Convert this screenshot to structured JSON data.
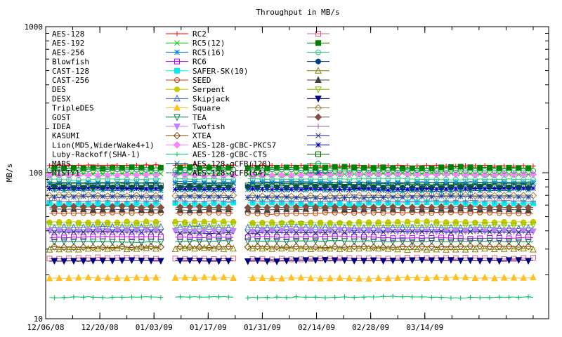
{
  "chart_data": {
    "type": "line",
    "title": "Throughput in MB/s",
    "ylabel": "MB/s",
    "xlabel": "",
    "y_scale": "log",
    "ylim": [
      10,
      1000
    ],
    "y_ticks": [
      {
        "value": 10,
        "label": "10"
      },
      {
        "value": 100,
        "label": "100"
      },
      {
        "value": 1000,
        "label": "1000"
      }
    ],
    "xlim": [
      "2008-12-06",
      "2009-04-15"
    ],
    "x_ticks": [
      {
        "value": "2008-12-06",
        "label": "12/06/08"
      },
      {
        "value": "2008-12-20",
        "label": "12/20/08"
      },
      {
        "value": "2009-01-03",
        "label": "01/03/09"
      },
      {
        "value": "2009-01-17",
        "label": "01/17/09"
      },
      {
        "value": "2009-01-31",
        "label": "01/31/09"
      },
      {
        "value": "2009-02-14",
        "label": "02/14/09"
      },
      {
        "value": "2009-02-28",
        "label": "02/28/09"
      },
      {
        "value": "2009-03-14",
        "label": "03/14/09"
      }
    ],
    "x_start": "2008-12-07",
    "x_end": "2009-04-12",
    "gaps": [
      [
        "2009-01-06",
        "2009-01-08"
      ],
      [
        "2009-01-24",
        "2009-01-26"
      ]
    ],
    "grid": false,
    "legend_placement": "top-left",
    "series": [
      {
        "name": "AES-128",
        "color": "#ff0000",
        "marker": "plus",
        "value": 112
      },
      {
        "name": "AES-192",
        "color": "#00c000",
        "marker": "x",
        "value": 98
      },
      {
        "name": "AES-256",
        "color": "#0080ff",
        "marker": "star",
        "value": 86
      },
      {
        "name": "Blowfish",
        "color": "#c000ff",
        "marker": "square-open",
        "value": 36
      },
      {
        "name": "CAST-128",
        "color": "#00eeee",
        "marker": "square-filled",
        "value": 62
      },
      {
        "name": "CAST-256",
        "color": "#c04000",
        "marker": "circle-open",
        "value": 53
      },
      {
        "name": "DES",
        "color": "#c8c800",
        "marker": "circle-filled",
        "value": 46
      },
      {
        "name": "DESX",
        "color": "#4169e1",
        "marker": "triangle-open",
        "value": 42
      },
      {
        "name": "TripleDES",
        "color": "#ffc020",
        "marker": "triangle-filled",
        "value": 19
      },
      {
        "name": "GOST",
        "color": "#008040",
        "marker": "triangle-down-open",
        "value": 34
      },
      {
        "name": "IDEA",
        "color": "#c080ff",
        "marker": "triangle-down-filled",
        "value": 40
      },
      {
        "name": "KASUMI",
        "color": "#804000",
        "marker": "diamond-open",
        "value": 31
      },
      {
        "name": "Lion(MD5,WiderWake4+1)",
        "color": "#ff80ff",
        "marker": "diamond-filled",
        "value": 96
      },
      {
        "name": "Luby-Rackoff(SHA-1)",
        "color": "#00c060",
        "marker": "plus",
        "value": 14
      },
      {
        "name": "MARS",
        "color": "#006080",
        "marker": "x",
        "value": 84
      },
      {
        "name": "MISTY1",
        "color": "#008080",
        "marker": "star",
        "value": 76
      },
      {
        "name": "RC2",
        "color": "#e06080",
        "marker": "square-open",
        "value": 26
      },
      {
        "name": "RC5(12)",
        "color": "#008000",
        "marker": "square-filled",
        "value": 108
      },
      {
        "name": "RC5(16)",
        "color": "#20d080",
        "marker": "circle-open",
        "value": 90
      },
      {
        "name": "RC6",
        "color": "#004080",
        "marker": "circle-filled",
        "value": 80
      },
      {
        "name": "SAFER-SK(10)",
        "color": "#808000",
        "marker": "triangle-open",
        "value": 30
      },
      {
        "name": "SEED",
        "color": "#404040",
        "marker": "triangle-filled",
        "value": 56
      },
      {
        "name": "Serpent",
        "color": "#80c000",
        "marker": "triangle-down-open",
        "value": 44
      },
      {
        "name": "Skipjack",
        "color": "#000080",
        "marker": "triangle-down-filled",
        "value": 25
      },
      {
        "name": "Square",
        "color": "#a08040",
        "marker": "diamond-open",
        "value": 70
      },
      {
        "name": "TEA",
        "color": "#805040",
        "marker": "diamond-filled",
        "value": 58
      },
      {
        "name": "Twofish",
        "color": "#a060a0",
        "marker": "plus",
        "value": 64
      },
      {
        "name": "XTEA",
        "color": "#202080",
        "marker": "x",
        "value": 39
      },
      {
        "name": "AES-128-gCBC-PKCS7",
        "color": "#0000c0",
        "marker": "star",
        "value": 78
      },
      {
        "name": "AES-128-gCBC-CTS",
        "color": "#006000",
        "marker": "square-open",
        "value": 82
      },
      {
        "name": "AES-128-gCFB(128)",
        "color": "#00a040",
        "marker": "circle-open",
        "value": 104
      },
      {
        "name": "AES-128-gCFB(64)",
        "color": "#2040a0",
        "marker": "star",
        "value": 68
      }
    ]
  }
}
